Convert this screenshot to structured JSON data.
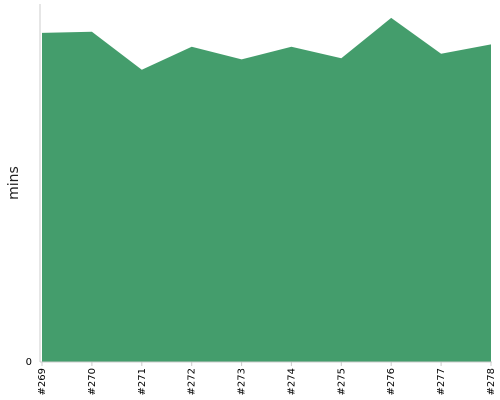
{
  "chart_data": {
    "type": "area",
    "title": "",
    "xlabel": "",
    "ylabel": "mins",
    "categories": [
      "#269",
      "#270",
      "#271",
      "#272",
      "#273",
      "#274",
      "#275",
      "#276",
      "#277",
      "#278"
    ],
    "series": [
      {
        "values": [
          28.5,
          28.6,
          25.3,
          27.3,
          26.2,
          27.3,
          26.3,
          29.8,
          26.7,
          27.5
        ]
      }
    ],
    "ylim": [
      0,
      31
    ],
    "y_ticks": [
      "0"
    ],
    "grid": false,
    "legend": "none",
    "colors": {
      "fill": "#449d6c",
      "axis": "#cccccc"
    }
  }
}
